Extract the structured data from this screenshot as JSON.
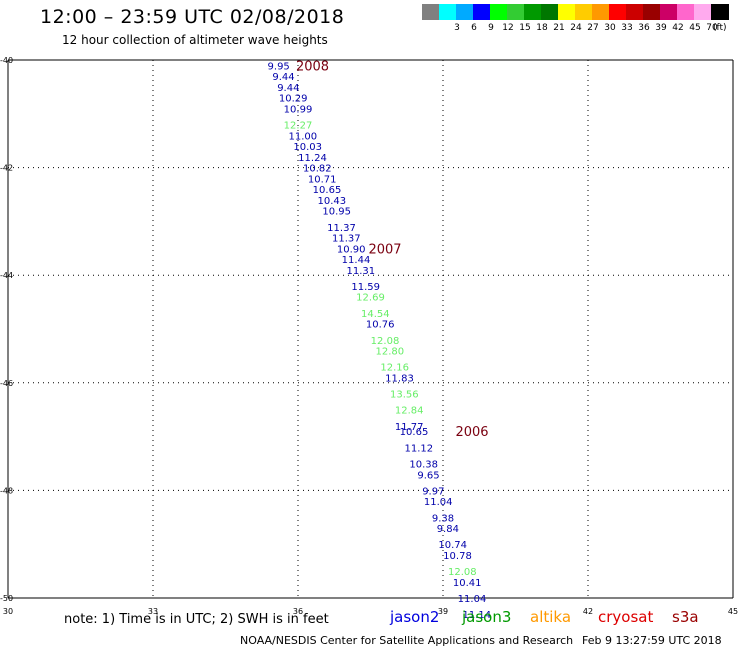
{
  "header": {
    "title": "12:00 – 23:59 UTC 02/08/2018",
    "subtitle": "12 hour collection of altimeter wave heights"
  },
  "color_scale": {
    "units": "(ft)",
    "swatches": [
      {
        "color": "#808080",
        "label": ""
      },
      {
        "color": "#00ffff",
        "label": "3"
      },
      {
        "color": "#00aaff",
        "label": "6"
      },
      {
        "color": "#0000ff",
        "label": "9"
      },
      {
        "color": "#00ff00",
        "label": "12"
      },
      {
        "color": "#33cc33",
        "label": "15"
      },
      {
        "color": "#009900",
        "label": "18"
      },
      {
        "color": "#007700",
        "label": "21"
      },
      {
        "color": "#ffff00",
        "label": "24"
      },
      {
        "color": "#ffcc00",
        "label": "27"
      },
      {
        "color": "#ff9900",
        "label": "30"
      },
      {
        "color": "#ff0000",
        "label": "33"
      },
      {
        "color": "#cc0000",
        "label": "36"
      },
      {
        "color": "#990000",
        "label": "39"
      },
      {
        "color": "#cc0066",
        "label": "42"
      },
      {
        "color": "#ff66cc",
        "label": "45"
      },
      {
        "color": "#ffaaee",
        "label": "70"
      },
      {
        "color": "#000000",
        "label": ""
      }
    ]
  },
  "map": {
    "lon_range": [
      30,
      45
    ],
    "lat_range": [
      -50,
      -40
    ],
    "x_ticks": [
      "30",
      "33",
      "36",
      "39",
      "42",
      "45"
    ],
    "y_ticks": [
      "-40",
      "-42",
      "-44",
      "-46",
      "-48",
      "-50"
    ],
    "grid": "dotted",
    "colors": {
      "jason2": "#0000aa",
      "jason3": "#66ee66"
    },
    "observations": [
      {
        "lon": 35.6,
        "lat": -40.1,
        "v": "9.95",
        "s": "jason2"
      },
      {
        "lon": 35.7,
        "lat": -40.3,
        "v": "9.44",
        "s": "jason2"
      },
      {
        "lon": 35.8,
        "lat": -40.5,
        "v": "9.44",
        "s": "jason2"
      },
      {
        "lon": 35.9,
        "lat": -40.7,
        "v": "10.29",
        "s": "jason2"
      },
      {
        "lon": 36.0,
        "lat": -40.9,
        "v": "10.99",
        "s": "jason2"
      },
      {
        "lon": 36.0,
        "lat": -41.2,
        "v": "12.27",
        "s": "jason3"
      },
      {
        "lon": 36.1,
        "lat": -41.4,
        "v": "11.00",
        "s": "jason2"
      },
      {
        "lon": 36.2,
        "lat": -41.6,
        "v": "10.03",
        "s": "jason2"
      },
      {
        "lon": 36.3,
        "lat": -41.8,
        "v": "11.24",
        "s": "jason2"
      },
      {
        "lon": 36.4,
        "lat": -42.0,
        "v": "10.82",
        "s": "jason2"
      },
      {
        "lon": 36.5,
        "lat": -42.2,
        "v": "10.71",
        "s": "jason2"
      },
      {
        "lon": 36.6,
        "lat": -42.4,
        "v": "10.65",
        "s": "jason2"
      },
      {
        "lon": 36.7,
        "lat": -42.6,
        "v": "10.43",
        "s": "jason2"
      },
      {
        "lon": 36.8,
        "lat": -42.8,
        "v": "10.95",
        "s": "jason2"
      },
      {
        "lon": 36.9,
        "lat": -43.1,
        "v": "11.37",
        "s": "jason2"
      },
      {
        "lon": 37.0,
        "lat": -43.3,
        "v": "11.37",
        "s": "jason2"
      },
      {
        "lon": 37.1,
        "lat": -43.5,
        "v": "10.90",
        "s": "jason2"
      },
      {
        "lon": 37.2,
        "lat": -43.7,
        "v": "11.44",
        "s": "jason2"
      },
      {
        "lon": 37.3,
        "lat": -43.9,
        "v": "11.31",
        "s": "jason2"
      },
      {
        "lon": 37.4,
        "lat": -44.2,
        "v": "11.59",
        "s": "jason2"
      },
      {
        "lon": 37.5,
        "lat": -44.4,
        "v": "12.69",
        "s": "jason3"
      },
      {
        "lon": 37.6,
        "lat": -44.7,
        "v": "14.54",
        "s": "jason3"
      },
      {
        "lon": 37.7,
        "lat": -44.9,
        "v": "10.76",
        "s": "jason2"
      },
      {
        "lon": 37.8,
        "lat": -45.2,
        "v": "12.08",
        "s": "jason3"
      },
      {
        "lon": 37.9,
        "lat": -45.4,
        "v": "12.80",
        "s": "jason3"
      },
      {
        "lon": 38.0,
        "lat": -45.7,
        "v": "12.16",
        "s": "jason3"
      },
      {
        "lon": 38.1,
        "lat": -45.9,
        "v": "11.83",
        "s": "jason2"
      },
      {
        "lon": 38.2,
        "lat": -46.2,
        "v": "13.56",
        "s": "jason3"
      },
      {
        "lon": 38.3,
        "lat": -46.5,
        "v": "12.84",
        "s": "jason3"
      },
      {
        "lon": 38.3,
        "lat": -46.8,
        "v": "11.77",
        "s": "jason2"
      },
      {
        "lon": 38.4,
        "lat": -46.9,
        "v": "10.65",
        "s": "jason2"
      },
      {
        "lon": 38.5,
        "lat": -47.2,
        "v": "11.12",
        "s": "jason2"
      },
      {
        "lon": 38.6,
        "lat": -47.5,
        "v": "10.38",
        "s": "jason2"
      },
      {
        "lon": 38.7,
        "lat": -47.7,
        "v": "9.65",
        "s": "jason2"
      },
      {
        "lon": 38.8,
        "lat": -48.0,
        "v": "9.97",
        "s": "jason2"
      },
      {
        "lon": 38.9,
        "lat": -48.2,
        "v": "11.04",
        "s": "jason2"
      },
      {
        "lon": 39.0,
        "lat": -48.5,
        "v": "9.38",
        "s": "jason2"
      },
      {
        "lon": 39.1,
        "lat": -48.7,
        "v": "9.84",
        "s": "jason2"
      },
      {
        "lon": 39.2,
        "lat": -49.0,
        "v": "10.74",
        "s": "jason2"
      },
      {
        "lon": 39.3,
        "lat": -49.2,
        "v": "10.78",
        "s": "jason2"
      },
      {
        "lon": 39.4,
        "lat": -49.5,
        "v": "12.08",
        "s": "jason3"
      },
      {
        "lon": 39.5,
        "lat": -49.7,
        "v": "10.41",
        "s": "jason2"
      },
      {
        "lon": 39.6,
        "lat": -50.0,
        "v": "11.04",
        "s": "jason2"
      },
      {
        "lon": 39.7,
        "lat": -50.3,
        "v": "11.14",
        "s": "jason2"
      }
    ],
    "time_markers": [
      {
        "lon": 36.3,
        "lat": -40.1,
        "label": "2008"
      },
      {
        "lon": 37.8,
        "lat": -43.5,
        "label": "2007"
      },
      {
        "lon": 39.6,
        "lat": -46.9,
        "label": "2006"
      }
    ]
  },
  "footer": {
    "note": "note: 1) Time is in UTC; 2) SWH is in feet",
    "legend": [
      {
        "name": "jason2",
        "color": "#0000dd"
      },
      {
        "name": "jason3",
        "color": "#009900"
      },
      {
        "name": "altika",
        "color": "#ff9900"
      },
      {
        "name": "cryosat",
        "color": "#dd0000"
      },
      {
        "name": "s3a",
        "color": "#990000"
      }
    ],
    "credit": "NOAA/NESDIS Center for Satellite Applications and Research",
    "date": "Feb  9 13:27:59 UTC 2018"
  }
}
